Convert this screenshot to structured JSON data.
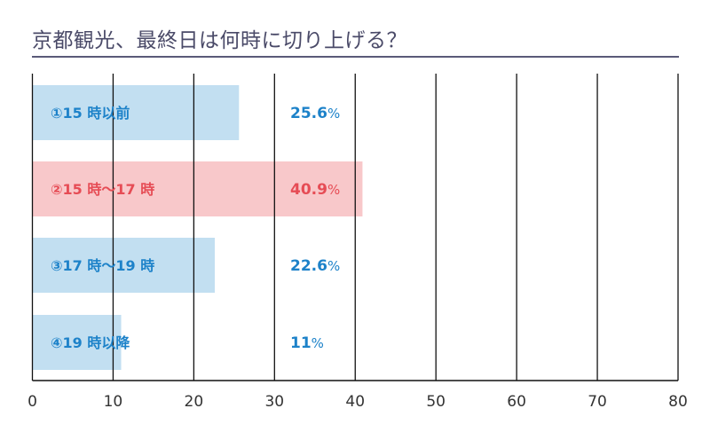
{
  "chart_data": {
    "type": "bar",
    "orientation": "horizontal",
    "title": "京都観光、最終日は何時に切り上げる？",
    "categories": [
      "①15 時以前",
      "②15 時〜17 時",
      "③17 時〜19 時",
      "④19 時以降"
    ],
    "values": [
      25.6,
      40.9,
      22.6,
      11
    ],
    "value_labels": [
      "25.6",
      "40.9",
      "22.6",
      "11"
    ],
    "unit": "%",
    "highlight_index": 1,
    "xlim": [
      0,
      80
    ],
    "xticks": [
      "0",
      "10",
      "20",
      "30",
      "40",
      "50",
      "60",
      "70",
      "80"
    ],
    "grid": true,
    "xlabel": "",
    "ylabel": "",
    "colors": {
      "bar": "#c2dff1",
      "bar_text": "#1d82c9",
      "highlight_bar": "#f8c8ca",
      "highlight_text": "#e64c55",
      "grid": "#111111",
      "tick_text": "#333333"
    }
  }
}
